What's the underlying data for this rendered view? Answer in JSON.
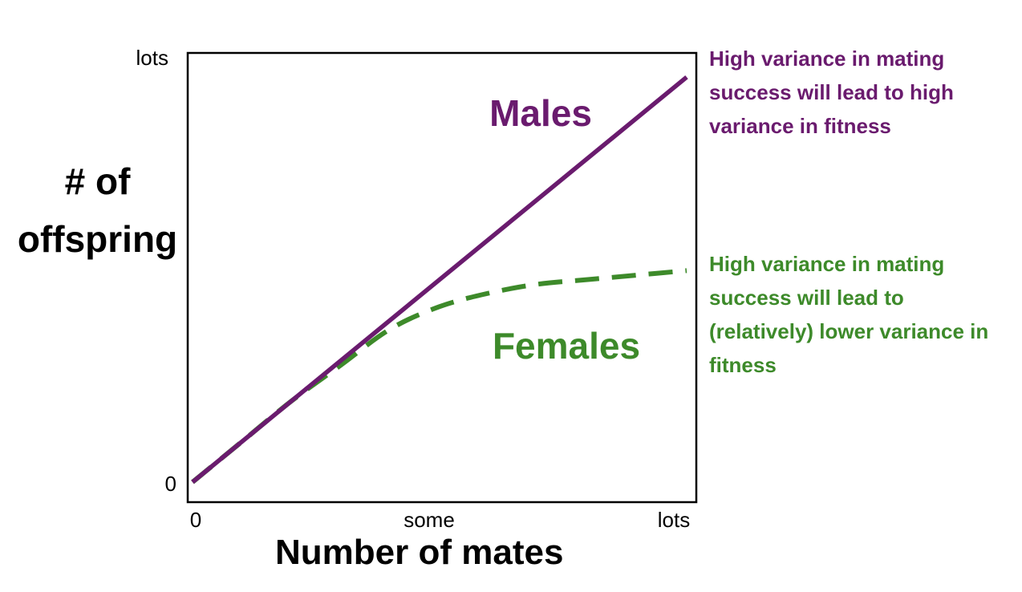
{
  "chart_data": {
    "type": "line",
    "xlabel": "Number of mates",
    "ylabel": "# of offspring",
    "x_ticks": [
      "0",
      "some",
      "lots"
    ],
    "y_ticks": [
      "0",
      "lots"
    ],
    "xlim": [
      0,
      1
    ],
    "ylim": [
      0,
      1
    ],
    "grid": false,
    "series": [
      {
        "name": "Males",
        "style": "solid",
        "color": "#6a1b6e",
        "x": [
          0,
          1
        ],
        "y": [
          0,
          0.9
        ]
      },
      {
        "name": "Females",
        "style": "dashed",
        "color": "#3d8a2a",
        "x": [
          0,
          0.1,
          0.2,
          0.3,
          0.4,
          0.5,
          0.6,
          0.7,
          0.8,
          0.9,
          1.0
        ],
        "y": [
          0,
          0.09,
          0.18,
          0.26,
          0.34,
          0.39,
          0.42,
          0.44,
          0.45,
          0.46,
          0.47
        ]
      }
    ],
    "annotations": [
      {
        "series": "Males",
        "text": "High variance in mating success will lead to high variance in fitness",
        "color": "#6a1b6e"
      },
      {
        "series": "Females",
        "text": "High variance in mating success will lead to (relatively) lower variance in fitness",
        "color": "#3d8a2a"
      }
    ]
  }
}
